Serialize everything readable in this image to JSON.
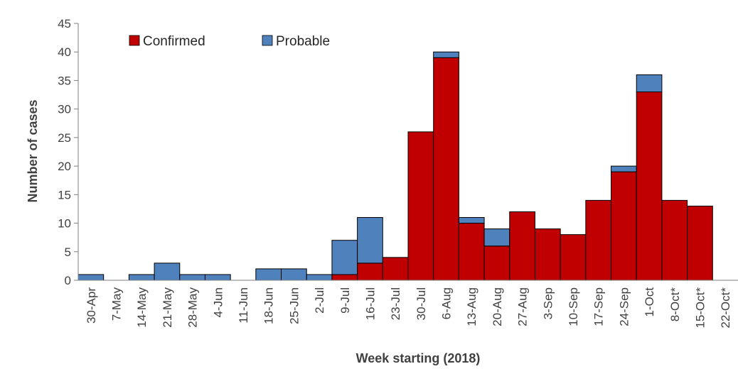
{
  "chart_data": {
    "type": "bar",
    "stacked": true,
    "title": "",
    "xlabel": "Week starting (2018)",
    "ylabel": "Number of cases",
    "ylim": [
      0,
      45
    ],
    "yticks": [
      0,
      5,
      10,
      15,
      20,
      25,
      30,
      35,
      40,
      45
    ],
    "grid": false,
    "legend_position": "top-left",
    "categories": [
      "30-Apr",
      "7-May",
      "14-May",
      "21-May",
      "28-May",
      "4-Jun",
      "11-Jun",
      "18-Jun",
      "25-Jun",
      "2-Jul",
      "9-Jul",
      "16-Jul",
      "23-Jul",
      "30-Jul",
      "6-Aug",
      "13-Aug",
      "20-Aug",
      "27-Aug",
      "3-Sep",
      "10-Sep",
      "17-Sep",
      "24-Sep",
      "1-Oct",
      "8-Oct*",
      "15-Oct*",
      "22-Oct*"
    ],
    "series": [
      {
        "name": "Confirmed",
        "color": "#C00000",
        "values": [
          0,
          0,
          0,
          0,
          0,
          0,
          0,
          0,
          0,
          0,
          1,
          3,
          4,
          26,
          39,
          10,
          6,
          12,
          9,
          8,
          14,
          19,
          33,
          14,
          13,
          0
        ]
      },
      {
        "name": "Probable",
        "color": "#4F81BD",
        "values": [
          1,
          0,
          1,
          3,
          1,
          1,
          0,
          2,
          2,
          1,
          6,
          8,
          0,
          0,
          1,
          1,
          3,
          0,
          0,
          0,
          0,
          1,
          3,
          0,
          0,
          0
        ]
      }
    ]
  }
}
